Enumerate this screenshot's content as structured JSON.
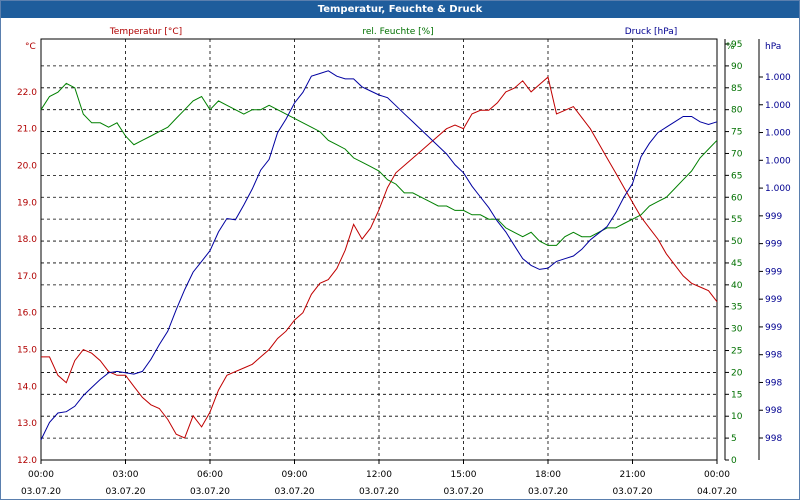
{
  "window": {
    "title": "Temperatur, Feuchte & Druck"
  },
  "chart_data": {
    "type": "line",
    "title": "Temperatur, Feuchte & Druck",
    "grid": true,
    "x_ticks": [
      {
        "h": 0,
        "time": "00:00",
        "date": "03.07.20"
      },
      {
        "h": 3,
        "time": "03:00",
        "date": "03.07.20"
      },
      {
        "h": 6,
        "time": "06:00",
        "date": "03.07.20"
      },
      {
        "h": 9,
        "time": "09:00",
        "date": "03.07.20"
      },
      {
        "h": 12,
        "time": "12:00",
        "date": "03.07.20"
      },
      {
        "h": 15,
        "time": "15:00",
        "date": "03.07.20"
      },
      {
        "h": 18,
        "time": "18:00",
        "date": "03.07.20"
      },
      {
        "h": 21,
        "time": "21:00",
        "date": "03.07.20"
      },
      {
        "h": 24,
        "time": "00:00",
        "date": "04.07.20"
      }
    ],
    "xlim": [
      0,
      24
    ],
    "axes": {
      "temp": {
        "unit": "°C",
        "ylim": [
          12,
          23.3
        ],
        "ticks": [
          "12.0",
          "13.0",
          "14.0",
          "15.0",
          "16.0",
          "17.0",
          "18.0",
          "19.0",
          "20.0",
          "21.0",
          "22.0"
        ],
        "color": "#b00000"
      },
      "humidity": {
        "unit": "%",
        "ylim": [
          0,
          95
        ],
        "ticks": [
          "0",
          "5",
          "10",
          "15",
          "20",
          "25",
          "30",
          "35",
          "40",
          "45",
          "50",
          "55",
          "60",
          "65",
          "70",
          "75",
          "80",
          "85",
          "90",
          "95"
        ],
        "color": "#007000"
      },
      "pressure": {
        "unit": "hPa",
        "ylim": [
          997.7,
          1000.8
        ],
        "ticks": [
          "998",
          "998",
          "998",
          "998",
          "999",
          "999",
          "999",
          "999",
          "999",
          "1.000",
          "1.000",
          "1.000",
          "1.000",
          "1.000"
        ],
        "color": "#000090"
      }
    },
    "series": [
      {
        "name": "Temperatur [°C]",
        "axis": "temp",
        "color": "#c00000",
        "x": [
          0,
          0.3,
          0.6,
          0.9,
          1.2,
          1.5,
          1.8,
          2.1,
          2.4,
          2.7,
          3,
          3.3,
          3.6,
          3.9,
          4.2,
          4.5,
          4.8,
          5.1,
          5.4,
          5.7,
          6,
          6.3,
          6.6,
          6.9,
          7.2,
          7.5,
          7.8,
          8.1,
          8.4,
          8.7,
          9,
          9.3,
          9.6,
          9.9,
          10.2,
          10.5,
          10.8,
          11.1,
          11.4,
          11.7,
          12,
          12.3,
          12.6,
          12.9,
          13.2,
          13.5,
          13.8,
          14.1,
          14.4,
          14.7,
          15,
          15.3,
          15.6,
          15.9,
          16.2,
          16.5,
          16.8,
          17.1,
          17.4,
          17.7,
          18,
          18.3,
          18.6,
          18.9,
          19.2,
          19.5,
          19.8,
          20.1,
          20.4,
          20.7,
          21,
          21.3,
          21.6,
          21.9,
          22.2,
          22.5,
          22.8,
          23.1,
          23.4,
          23.7,
          24
        ],
        "values": [
          14.8,
          14.8,
          14.3,
          14.1,
          14.7,
          15.0,
          14.9,
          14.7,
          14.4,
          14.3,
          14.3,
          14.0,
          13.7,
          13.5,
          13.4,
          13.1,
          12.7,
          12.6,
          13.2,
          12.9,
          13.3,
          13.9,
          14.3,
          14.4,
          14.5,
          14.6,
          14.8,
          15.0,
          15.3,
          15.5,
          15.8,
          16.0,
          16.5,
          16.8,
          16.9,
          17.2,
          17.7,
          18.4,
          18.0,
          18.3,
          18.8,
          19.4,
          19.8,
          20.0,
          20.2,
          20.4,
          20.6,
          20.8,
          21.0,
          21.1,
          21.0,
          21.4,
          21.5,
          21.5,
          21.7,
          22.0,
          22.1,
          22.3,
          22.0,
          22.2,
          22.4,
          21.4,
          21.5,
          21.6,
          21.3,
          21.0,
          20.6,
          20.2,
          19.8,
          19.4,
          19.0,
          18.6,
          18.3,
          18.0,
          17.6,
          17.3,
          17.0,
          16.8,
          16.7,
          16.6,
          16.3
        ]
      },
      {
        "name": "rel. Feuchte [%]",
        "axis": "humidity",
        "color": "#008000",
        "x": [
          0,
          0.3,
          0.6,
          0.9,
          1.2,
          1.5,
          1.8,
          2.1,
          2.4,
          2.7,
          3,
          3.3,
          3.6,
          3.9,
          4.2,
          4.5,
          4.8,
          5.1,
          5.4,
          5.7,
          6,
          6.3,
          6.6,
          6.9,
          7.2,
          7.5,
          7.8,
          8.1,
          8.4,
          8.7,
          9,
          9.3,
          9.6,
          9.9,
          10.2,
          10.5,
          10.8,
          11.1,
          11.4,
          11.7,
          12,
          12.3,
          12.6,
          12.9,
          13.2,
          13.5,
          13.8,
          14.1,
          14.4,
          14.7,
          15,
          15.3,
          15.6,
          15.9,
          16.2,
          16.5,
          16.8,
          17.1,
          17.4,
          17.7,
          18,
          18.3,
          18.6,
          18.9,
          19.2,
          19.5,
          19.8,
          20.1,
          20.4,
          20.7,
          21,
          21.3,
          21.6,
          21.9,
          22.2,
          22.5,
          22.8,
          23.1,
          23.4,
          23.7,
          24
        ],
        "values": [
          80,
          83,
          84,
          86,
          85,
          79,
          77,
          77,
          76,
          77,
          74,
          72,
          73,
          74,
          75,
          76,
          78,
          80,
          82,
          83,
          80,
          82,
          81,
          80,
          79,
          80,
          80,
          81,
          80,
          79,
          78,
          77,
          76,
          75,
          73,
          72,
          71,
          69,
          68,
          67,
          66,
          64,
          63,
          61,
          61,
          60,
          59,
          58,
          58,
          57,
          57,
          56,
          56,
          55,
          55,
          53,
          52,
          51,
          52,
          50,
          49,
          49,
          51,
          52,
          51,
          51,
          52,
          53,
          53,
          54,
          55,
          56,
          58,
          59,
          60,
          62,
          64,
          66,
          69,
          71,
          73
        ]
      },
      {
        "name": "Druck [hPa]",
        "axis": "pressure",
        "color": "#0000a0",
        "x": [
          0,
          0.3,
          0.6,
          0.9,
          1.2,
          1.5,
          1.8,
          2.1,
          2.4,
          2.7,
          3,
          3.3,
          3.6,
          3.9,
          4.2,
          4.5,
          4.8,
          5.1,
          5.4,
          5.7,
          6,
          6.3,
          6.6,
          6.9,
          7.2,
          7.5,
          7.8,
          8.1,
          8.4,
          8.7,
          9,
          9.3,
          9.6,
          9.9,
          10.2,
          10.5,
          10.8,
          11.1,
          11.4,
          11.7,
          12,
          12.3,
          12.6,
          12.9,
          13.2,
          13.5,
          13.8,
          14.1,
          14.4,
          14.7,
          15,
          15.3,
          15.6,
          15.9,
          16.2,
          16.5,
          16.8,
          17.1,
          17.4,
          17.7,
          18,
          18.3,
          18.6,
          18.9,
          19.2,
          19.5,
          19.8,
          20.1,
          20.4,
          20.7,
          21,
          21.3,
          21.6,
          21.9,
          22.2,
          22.5,
          22.8,
          23.1,
          23.4,
          23.7,
          24
        ],
        "values": [
          997.85,
          997.98,
          998.05,
          998.06,
          998.1,
          998.18,
          998.24,
          998.3,
          998.35,
          998.36,
          998.35,
          998.34,
          998.36,
          998.45,
          998.56,
          998.66,
          998.82,
          998.97,
          999.1,
          999.18,
          999.26,
          999.4,
          999.5,
          999.49,
          999.6,
          999.72,
          999.86,
          999.94,
          1000.14,
          1000.24,
          1000.36,
          1000.44,
          1000.56,
          1000.58,
          1000.6,
          1000.56,
          1000.54,
          1000.54,
          1000.48,
          1000.45,
          1000.42,
          1000.4,
          1000.34,
          1000.28,
          1000.22,
          1000.16,
          1000.1,
          1000.04,
          999.98,
          999.9,
          999.84,
          999.74,
          999.66,
          999.58,
          999.48,
          999.4,
          999.3,
          999.2,
          999.15,
          999.12,
          999.13,
          999.18,
          999.2,
          999.22,
          999.27,
          999.34,
          999.39,
          999.44,
          999.54,
          999.66,
          999.76,
          999.96,
          1000.06,
          1000.14,
          1000.18,
          1000.22,
          1000.26,
          1000.26,
          1000.22,
          1000.2,
          1000.22
        ]
      }
    ]
  }
}
